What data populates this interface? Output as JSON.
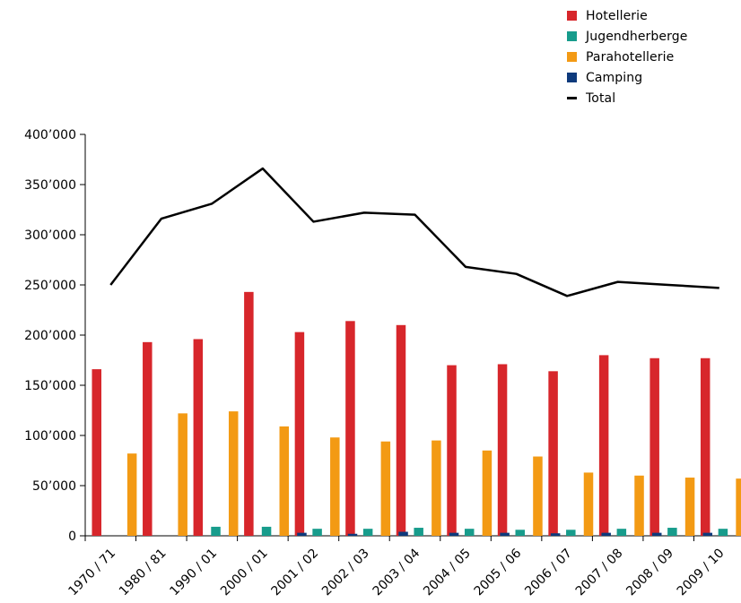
{
  "chart_data": {
    "type": "bar",
    "categories": [
      "1970 / 71",
      "1980 / 81",
      "1990 / 01",
      "2000 / 01",
      "2001 / 02",
      "2002 / 03",
      "2003 / 04",
      "2004 / 05",
      "2005 / 06",
      "2006 / 07",
      "2007 / 08",
      "2008 / 09",
      "2009 / 10"
    ],
    "series": [
      {
        "name": "Hotellerie",
        "type": "bar",
        "color": "#d7262b",
        "values": [
          166000,
          193000,
          196000,
          243000,
          203000,
          214000,
          210000,
          170000,
          171000,
          164000,
          180000,
          177000,
          177000
        ]
      },
      {
        "name": "Jugendherberge",
        "type": "bar",
        "color": "#179c8c",
        "values": [
          0,
          0,
          9000,
          9000,
          7000,
          7000,
          8000,
          7000,
          6000,
          6000,
          7000,
          8000,
          7000
        ]
      },
      {
        "name": "Parahotellerie",
        "type": "bar",
        "color": "#f39a14",
        "values": [
          82000,
          122000,
          124000,
          109000,
          98000,
          94000,
          95000,
          85000,
          79000,
          63000,
          60000,
          58000,
          57000
        ]
      },
      {
        "name": "Camping",
        "type": "bar",
        "color": "#0e3a7c",
        "values": [
          0,
          0,
          0,
          3000,
          2000,
          4000,
          3000,
          3000,
          2500,
          3000,
          3000,
          3000,
          3000
        ]
      },
      {
        "name": "Total",
        "type": "line",
        "color": "#000000",
        "values": [
          250000,
          316000,
          331000,
          366000,
          313000,
          322000,
          320000,
          268000,
          261000,
          239000,
          253000,
          250000,
          247000
        ]
      }
    ],
    "ylim": [
      0,
      400000
    ],
    "yticks": [
      0,
      50000,
      100000,
      150000,
      200000,
      250000,
      300000,
      350000,
      400000
    ],
    "ytick_labels": [
      "0",
      "50’000",
      "100’000",
      "150’000",
      "200’000",
      "250’000",
      "300’000",
      "350’000",
      "400’000"
    ],
    "legend_position": "top-right",
    "grid": false
  },
  "legend": {
    "hotellerie": "Hotellerie",
    "jugendherberge": "Jugendherberge",
    "parahotellerie": "Parahotellerie",
    "camping": "Camping",
    "total": "Total"
  }
}
